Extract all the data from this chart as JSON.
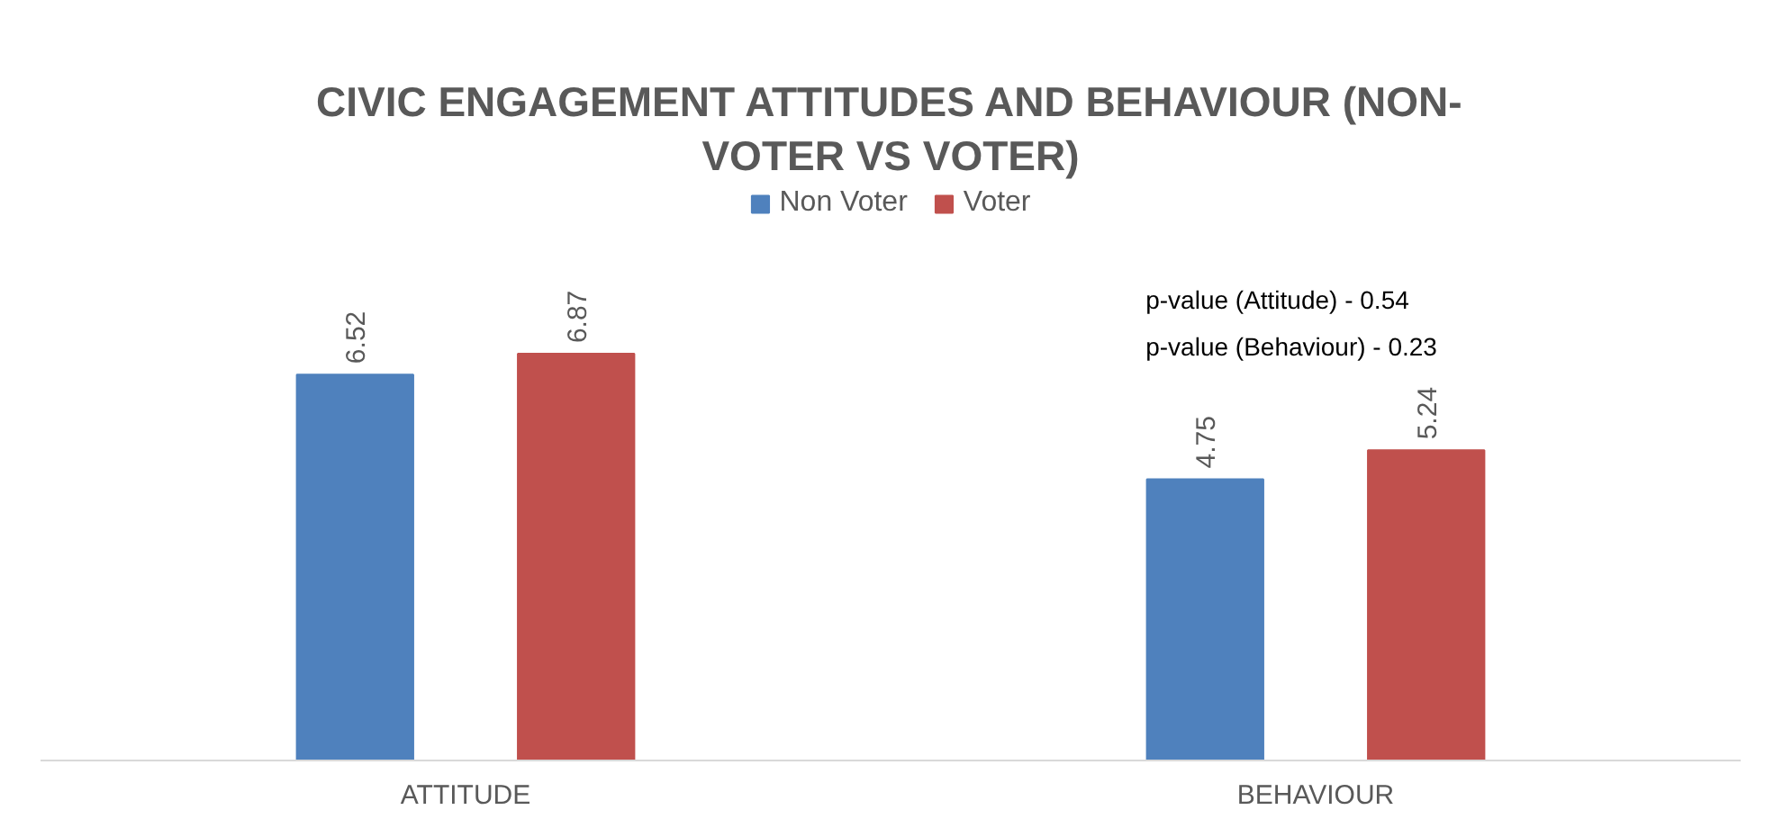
{
  "chart_data": {
    "type": "bar",
    "title": "CIVIC ENGAGEMENT ATTITUDES AND BEHAVIOUR (NON-VOTER VS VOTER)",
    "categories": [
      "ATTITUDE",
      "BEHAVIOUR"
    ],
    "series": [
      {
        "name": "Non Voter",
        "color": "#4f81bd",
        "values": [
          6.52,
          4.75
        ]
      },
      {
        "name": "Voter",
        "color": "#c0504d",
        "values": [
          6.87,
          5.24
        ]
      }
    ],
    "data_labels": true,
    "legend": "top",
    "grid": false,
    "annotations": [
      "p-value (Attitude)  - 0.54",
      "p-value (Behaviour) - 0.23"
    ]
  }
}
